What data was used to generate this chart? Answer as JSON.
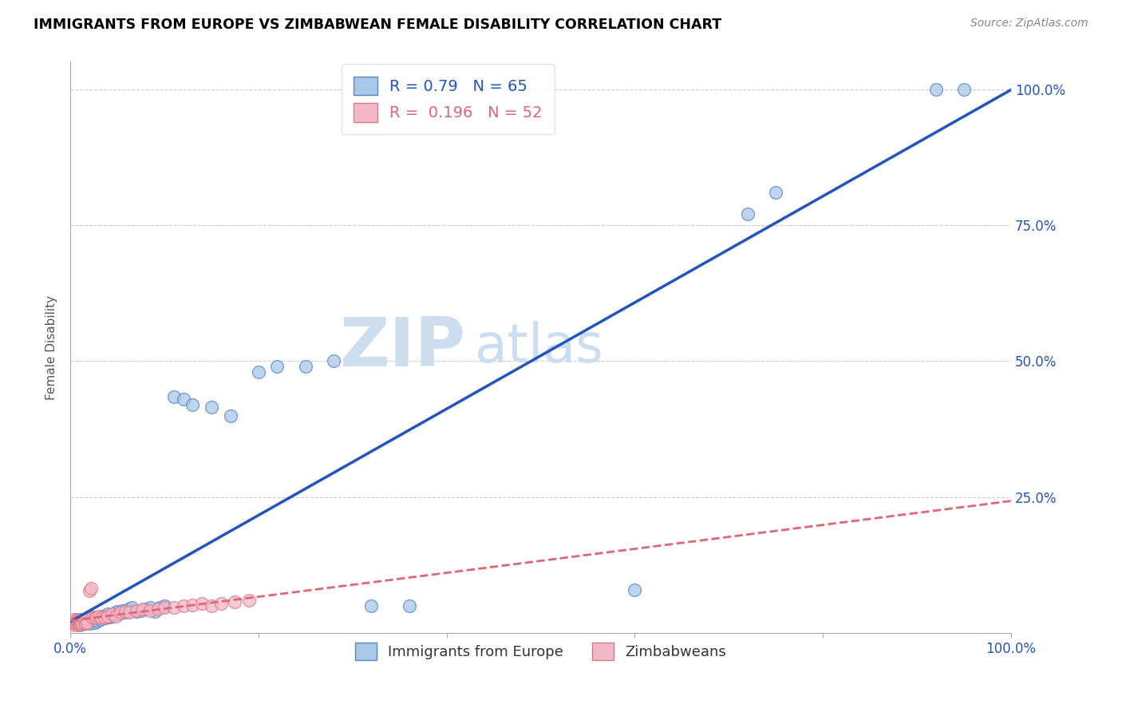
{
  "title": "IMMIGRANTS FROM EUROPE VS ZIMBABWEAN FEMALE DISABILITY CORRELATION CHART",
  "source": "Source: ZipAtlas.com",
  "ylabel": "Female Disability",
  "y_ticks": [
    0.0,
    0.25,
    0.5,
    0.75,
    1.0
  ],
  "y_tick_labels": [
    "",
    "25.0%",
    "50.0%",
    "75.0%",
    "100.0%"
  ],
  "blue_R": 0.79,
  "blue_N": 65,
  "pink_R": 0.196,
  "pink_N": 52,
  "blue_color": "#a8c8e8",
  "pink_color": "#f4b8c8",
  "blue_edge_color": "#5588cc",
  "pink_edge_color": "#e07888",
  "blue_line_color": "#2255bb",
  "pink_line_color": "#dd6677",
  "watermark_zip": "ZIP",
  "watermark_atlas": "atlas",
  "watermark_color": "#ccddf0",
  "blue_scatter_x": [
    0.005,
    0.007,
    0.008,
    0.009,
    0.01,
    0.011,
    0.012,
    0.013,
    0.014,
    0.015,
    0.016,
    0.017,
    0.018,
    0.019,
    0.02,
    0.021,
    0.022,
    0.023,
    0.024,
    0.025,
    0.026,
    0.027,
    0.028,
    0.029,
    0.03,
    0.032,
    0.033,
    0.035,
    0.037,
    0.038,
    0.04,
    0.042,
    0.044,
    0.046,
    0.048,
    0.05,
    0.052,
    0.055,
    0.058,
    0.06,
    0.062,
    0.065,
    0.07,
    0.075,
    0.08,
    0.085,
    0.09,
    0.095,
    0.1,
    0.11,
    0.12,
    0.13,
    0.15,
    0.17,
    0.2,
    0.22,
    0.25,
    0.28,
    0.32,
    0.36,
    0.6,
    0.72,
    0.75,
    0.92,
    0.95
  ],
  "blue_scatter_y": [
    0.02,
    0.025,
    0.018,
    0.022,
    0.015,
    0.02,
    0.018,
    0.025,
    0.02,
    0.022,
    0.018,
    0.024,
    0.02,
    0.022,
    0.025,
    0.018,
    0.028,
    0.03,
    0.025,
    0.022,
    0.02,
    0.025,
    0.03,
    0.022,
    0.028,
    0.025,
    0.03,
    0.032,
    0.028,
    0.03,
    0.035,
    0.03,
    0.032,
    0.035,
    0.038,
    0.04,
    0.035,
    0.042,
    0.038,
    0.04,
    0.045,
    0.048,
    0.04,
    0.042,
    0.045,
    0.048,
    0.04,
    0.048,
    0.05,
    0.435,
    0.43,
    0.42,
    0.415,
    0.4,
    0.48,
    0.49,
    0.49,
    0.5,
    0.05,
    0.05,
    0.08,
    0.77,
    0.81,
    1.0,
    1.0
  ],
  "pink_scatter_x": [
    0.002,
    0.003,
    0.004,
    0.004,
    0.005,
    0.005,
    0.006,
    0.006,
    0.007,
    0.007,
    0.008,
    0.008,
    0.009,
    0.009,
    0.01,
    0.01,
    0.011,
    0.011,
    0.012,
    0.013,
    0.014,
    0.015,
    0.016,
    0.017,
    0.018,
    0.02,
    0.022,
    0.024,
    0.026,
    0.028,
    0.03,
    0.033,
    0.036,
    0.04,
    0.044,
    0.048,
    0.053,
    0.058,
    0.063,
    0.07,
    0.077,
    0.085,
    0.093,
    0.1,
    0.11,
    0.12,
    0.13,
    0.14,
    0.15,
    0.16,
    0.175,
    0.19
  ],
  "pink_scatter_y": [
    0.02,
    0.025,
    0.018,
    0.02,
    0.015,
    0.022,
    0.018,
    0.02,
    0.018,
    0.022,
    0.018,
    0.022,
    0.018,
    0.025,
    0.02,
    0.022,
    0.018,
    0.025,
    0.022,
    0.02,
    0.025,
    0.022,
    0.018,
    0.025,
    0.02,
    0.078,
    0.082,
    0.028,
    0.028,
    0.03,
    0.032,
    0.028,
    0.03,
    0.032,
    0.035,
    0.032,
    0.038,
    0.04,
    0.038,
    0.042,
    0.045,
    0.042,
    0.045,
    0.048,
    0.048,
    0.05,
    0.052,
    0.055,
    0.05,
    0.055,
    0.058,
    0.06
  ]
}
